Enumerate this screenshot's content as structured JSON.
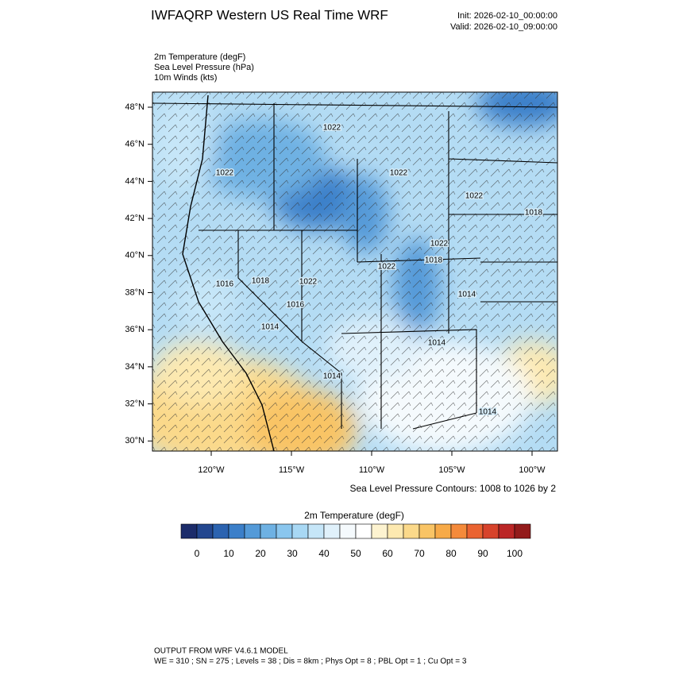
{
  "header": {
    "title": "IWFAQRP Western US Real Time WRF",
    "init": "Init: 2026-02-10_00:00:00",
    "valid": "Valid: 2026-02-10_09:00:00"
  },
  "fields": [
    "2m Temperature   (degF)",
    "Sea Level Pressure   (hPa)",
    "10m Winds   (kts)"
  ],
  "map": {
    "lat_ticks": [
      {
        "value": 48,
        "label": "48°N"
      },
      {
        "value": 46,
        "label": "46°N"
      },
      {
        "value": 44,
        "label": "44°N"
      },
      {
        "value": 42,
        "label": "42°N"
      },
      {
        "value": 40,
        "label": "40°N"
      },
      {
        "value": 38,
        "label": "38°N"
      },
      {
        "value": 36,
        "label": "36°N"
      },
      {
        "value": 34,
        "label": "34°N"
      },
      {
        "value": 32,
        "label": "32°N"
      },
      {
        "value": 30,
        "label": "30°N"
      }
    ],
    "lon_ticks": [
      {
        "value": -120,
        "label": "120°W"
      },
      {
        "value": -115,
        "label": "115°W"
      },
      {
        "value": -110,
        "label": "110°W"
      },
      {
        "value": -105,
        "label": "105°W"
      },
      {
        "value": -100,
        "label": "100°W"
      }
    ],
    "contour_labels": [
      "1022",
      "1022",
      "1022",
      "1022",
      "1018",
      "1022",
      "1022",
      "1018",
      "1016",
      "1018",
      "1022",
      "1016",
      "1014",
      "1014",
      "1014",
      "1014",
      "1014"
    ],
    "contour_note": "Sea Level Pressure Contours: 1008 to 1026 by 2"
  },
  "colorbar": {
    "title": "2m Temperature  (degF)",
    "labels": [
      0,
      10,
      20,
      30,
      40,
      50,
      60,
      70,
      80,
      90,
      100
    ],
    "colors": [
      "#1c2c6a",
      "#23478f",
      "#2b63b0",
      "#3b7fc9",
      "#549ad8",
      "#6eb1e3",
      "#8ac6ee",
      "#a8d8f4",
      "#c6e6f8",
      "#e0f1fb",
      "#f5fafd",
      "#ffffff",
      "#fdf3d0",
      "#fde9b0",
      "#fbd98a",
      "#f9c465",
      "#f7aa48",
      "#f48a3a",
      "#ea6331",
      "#d7432b",
      "#bb2626",
      "#931b1b"
    ]
  },
  "footer": [
    "OUTPUT FROM WRF V4.6.1 MODEL",
    "WE = 310 ; SN = 275 ; Levels = 38 ; Dis = 8km ; Phys Opt = 8 ; PBL Opt = 1 ; Cu Opt = 3"
  ]
}
